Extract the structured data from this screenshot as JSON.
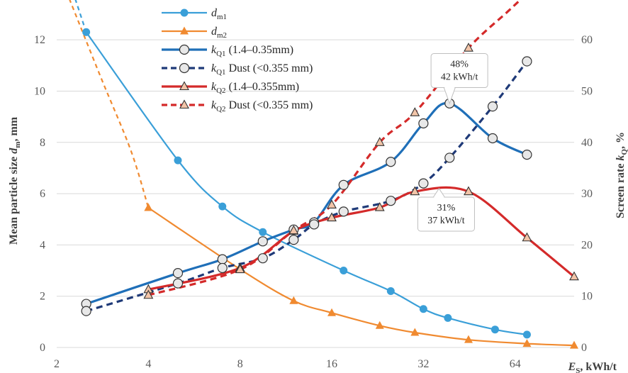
{
  "chart_data": {
    "type": "line",
    "x_scale": "log2",
    "xlabel": {
      "main": "E",
      "sub": "S",
      "rest": ", kWh/t"
    },
    "ylabel_left": {
      "pre": "Mean particle size ",
      "main": "d",
      "sub": "m",
      "rest": ", mm"
    },
    "ylabel_right": {
      "pre": "Screen rate ",
      "main": "k",
      "sub": "Q",
      "rest": ", %"
    },
    "xlim": [
      2,
      100
    ],
    "ylim_left": [
      0,
      13
    ],
    "ylim_right": [
      0,
      65
    ],
    "x_ticks": [
      2,
      4,
      8,
      16,
      32,
      64
    ],
    "y_ticks_left": [
      0,
      2,
      4,
      6,
      8,
      10,
      12
    ],
    "y_ticks_right": [
      0,
      10,
      20,
      30,
      40,
      50,
      60
    ],
    "grid": "horizontal",
    "legend_position": "top-left",
    "series": [
      {
        "legend": {
          "main": "d",
          "sub": "m1",
          "rest": ""
        },
        "axis": "left",
        "color": "#3a9fd8",
        "marker": "dot",
        "dashed": false,
        "x": [
          2.5,
          5,
          7,
          9.5,
          17.5,
          25,
          32,
          38.5,
          55,
          70
        ],
        "y": [
          12.3,
          7.3,
          5.5,
          4.5,
          3.0,
          2.2,
          1.5,
          1.15,
          0.7,
          0.5
        ],
        "extension": {
          "x": [
            2.3,
            2.5
          ],
          "y": [
            13.6,
            12.3
          ]
        }
      },
      {
        "legend": {
          "main": "d",
          "sub": "m2",
          "rest": ""
        },
        "axis": "left",
        "color": "#f08a30",
        "marker": "triangle-filled",
        "dashed": false,
        "x": [
          4,
          8,
          12,
          16,
          23,
          30,
          45,
          70,
          100
        ],
        "y": [
          5.45,
          3.05,
          1.82,
          1.35,
          0.85,
          0.58,
          0.3,
          0.15,
          0.08
        ],
        "extension": {
          "x": [
            2.2,
            2.8,
            3.5,
            4
          ],
          "y": [
            13.6,
            10.5,
            7.7,
            5.45
          ]
        }
      },
      {
        "legend": {
          "main": "k",
          "sub": "Q1",
          "rest": " (1.4–0.35mm)"
        },
        "axis": "right",
        "color": "#1f6fb8",
        "marker": "circle-open",
        "dashed": false,
        "x": [
          2.5,
          5,
          7,
          9.5,
          12,
          14,
          17.5,
          25,
          32,
          39,
          54,
          70
        ],
        "y": [
          8.5,
          14.5,
          17.2,
          20.7,
          23.0,
          24.4,
          31.7,
          36.2,
          43.7,
          47.6,
          40.8,
          37.6
        ]
      },
      {
        "legend": {
          "main": "k",
          "sub": "Q1",
          "rest": "  Dust (<0.355 mm)"
        },
        "axis": "right",
        "color": "#1f3a78",
        "marker": "circle-open",
        "dashed": true,
        "x": [
          2.5,
          5,
          7,
          9.5,
          12,
          14,
          17.5,
          25,
          32,
          39,
          54,
          70
        ],
        "y": [
          7.1,
          12.5,
          15.5,
          17.4,
          21.0,
          24.0,
          26.5,
          28.6,
          32.0,
          37.0,
          47.0,
          55.8
        ]
      },
      {
        "legend": {
          "main": "k",
          "sub": "Q2",
          "rest": " (1.4–0.355mm)"
        },
        "axis": "right",
        "color": "#d42a2a",
        "marker": "triangle-open",
        "dashed": false,
        "x": [
          4,
          8,
          12,
          16,
          23,
          30,
          45,
          70,
          100
        ],
        "y": [
          11.3,
          15.5,
          22.7,
          25.3,
          27.3,
          30.4,
          30.4,
          21.4,
          13.8
        ]
      },
      {
        "legend": {
          "main": "k",
          "sub": "Q2",
          "rest": "  Dust (<0.355 mm)"
        },
        "axis": "right",
        "color": "#d42a2a",
        "marker": "triangle-open",
        "dashed": true,
        "x": [
          4,
          8,
          12,
          16,
          23,
          30,
          45
        ],
        "y": [
          10.2,
          15.2,
          22.8,
          27.8,
          40.0,
          45.8,
          58.4
        ],
        "extension": {
          "x": [
            45,
            60,
            70
          ],
          "y": [
            58.4,
            65.3,
            69.0
          ]
        }
      }
    ],
    "annotations": [
      {
        "text": [
          "48%",
          "42 kWh/t"
        ],
        "box_x": 42,
        "box_y": 54,
        "point_x": 39,
        "point_y": 47.6
      },
      {
        "text": [
          "31%",
          "37 kWh/t"
        ],
        "box_x": 38,
        "box_y": 26,
        "point_x": 36,
        "point_y": 31.0
      }
    ]
  }
}
